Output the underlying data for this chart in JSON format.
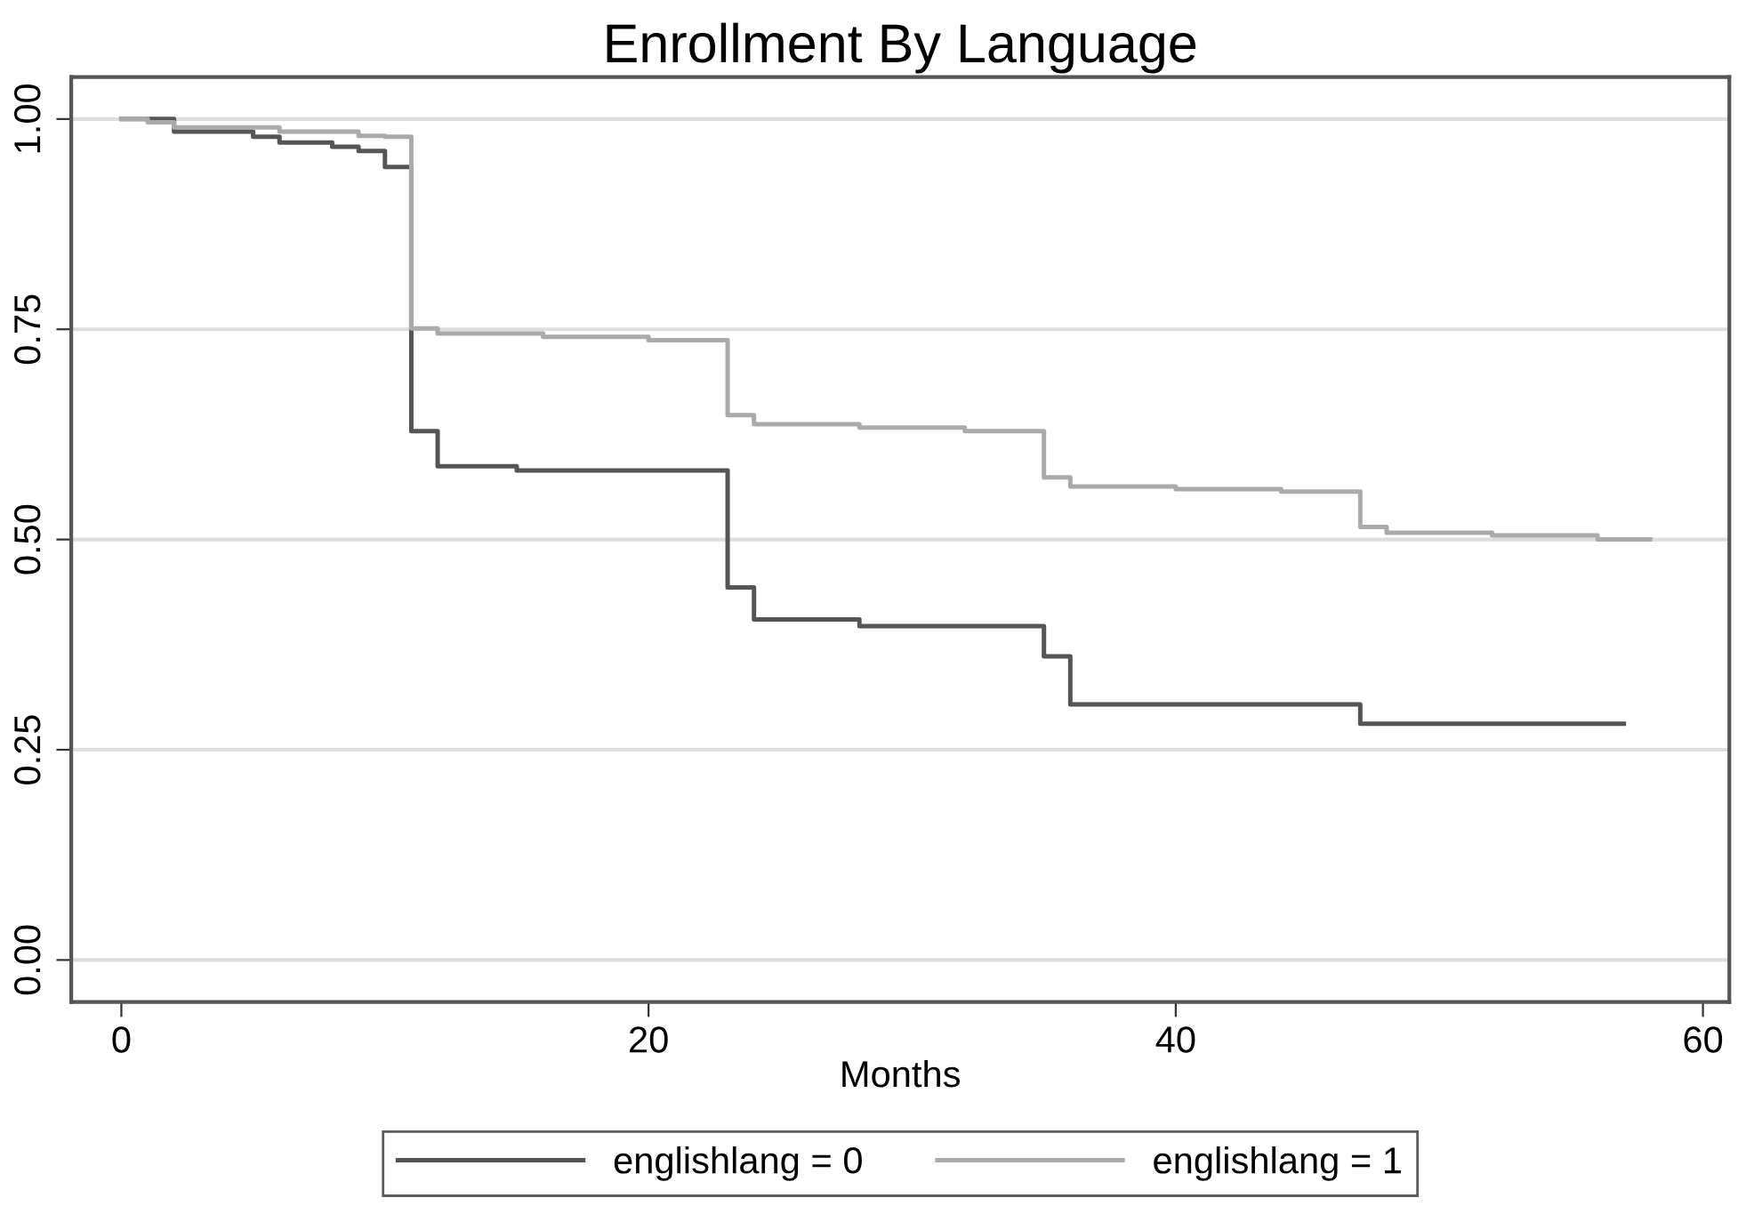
{
  "chart_data": {
    "type": "step",
    "title": "Enrollment By Language",
    "xlabel": "Months",
    "xlim": [
      -1.9,
      61
    ],
    "ylim": [
      -0.05,
      1.05
    ],
    "xticks": [
      0,
      20,
      40,
      60
    ],
    "yticks": [
      {
        "value": 0,
        "label": "0.00"
      },
      {
        "value": 0.25,
        "label": "0.25"
      },
      {
        "value": 0.5,
        "label": "0.50"
      },
      {
        "value": 0.75,
        "label": "0.75"
      },
      {
        "value": 1,
        "label": "1.00"
      }
    ],
    "grid": "y",
    "legend": "bottom",
    "line_style": "solid",
    "marker": "none",
    "series": [
      {
        "name": "englishlang = 0",
        "color": "#555555",
        "x": [
          0,
          2,
          5,
          6,
          8,
          9,
          10,
          11,
          12,
          15,
          23,
          24,
          28,
          35,
          36,
          47,
          57
        ],
        "values": [
          1.0,
          0.985,
          0.979,
          0.972,
          0.967,
          0.962,
          0.943,
          0.629,
          0.587,
          0.582,
          0.443,
          0.405,
          0.397,
          0.361,
          0.304,
          0.281,
          0.281
        ]
      },
      {
        "name": "englishlang = 1",
        "color": "#aaaaaa",
        "x": [
          0,
          1,
          2,
          6,
          9,
          10,
          11,
          12,
          16,
          20,
          23,
          24,
          28,
          32,
          35,
          36,
          40,
          44,
          47,
          48,
          52,
          56,
          58
        ],
        "values": [
          1.0,
          0.996,
          0.99,
          0.985,
          0.98,
          0.979,
          0.751,
          0.745,
          0.741,
          0.737,
          0.648,
          0.637,
          0.633,
          0.629,
          0.574,
          0.563,
          0.56,
          0.557,
          0.515,
          0.508,
          0.505,
          0.5,
          0.5
        ]
      }
    ]
  }
}
